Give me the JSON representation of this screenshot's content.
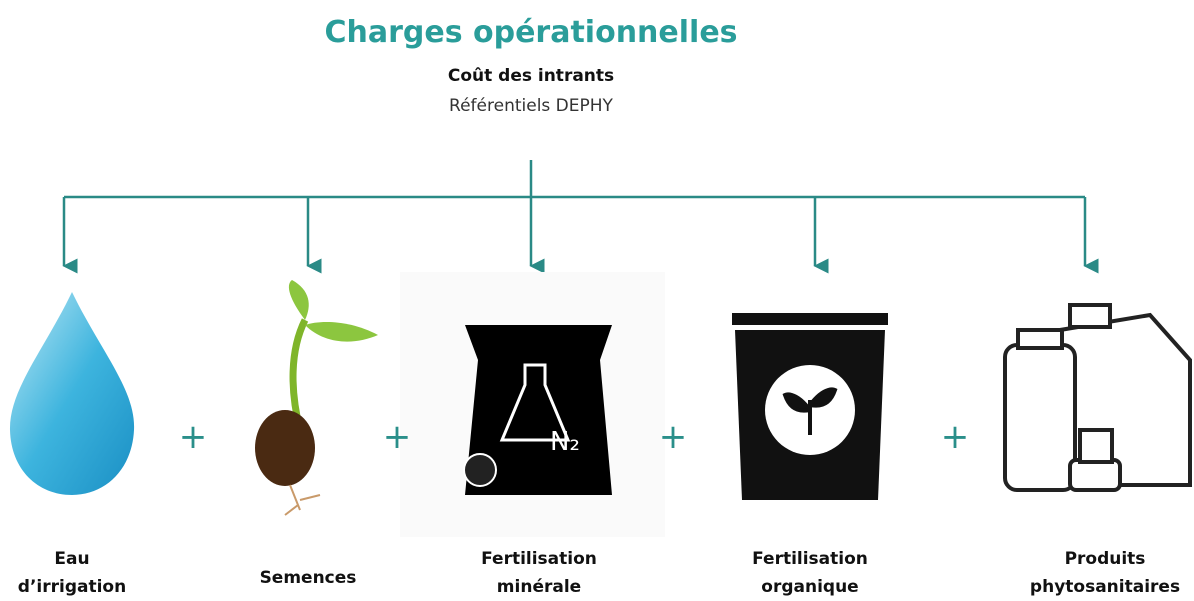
{
  "header": {
    "title": "Charges opérationnelles",
    "subtitle": "Coût des intrants",
    "source": "Référentiels DEPHY"
  },
  "nodes": [
    {
      "label": [
        "Eau",
        "d’irrigation"
      ]
    },
    {
      "label": [
        "Semences"
      ]
    },
    {
      "label": [
        "Fertilisation",
        "minérale"
      ]
    },
    {
      "label": [
        "Fertilisation",
        "organique"
      ]
    },
    {
      "label": [
        "Produits",
        "phytosanitaires"
      ]
    }
  ],
  "operators": [
    "+",
    "+",
    "+",
    "+"
  ]
}
